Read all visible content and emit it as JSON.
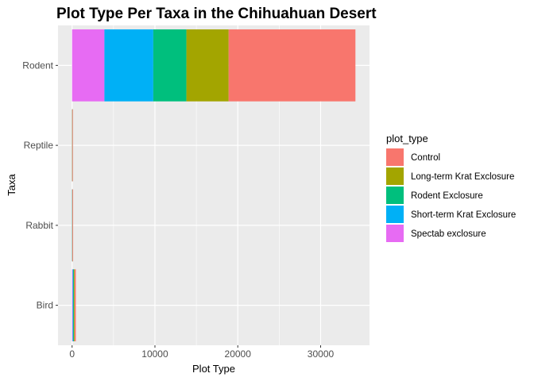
{
  "chart_data": {
    "type": "bar",
    "orientation": "horizontal",
    "stacked": true,
    "title": "Plot Type Per Taxa in the Chihuahuan Desert",
    "xlabel": "Plot Type",
    "ylabel": "Taxa",
    "categories": [
      "Bird",
      "Rabbit",
      "Reptile",
      "Rodent"
    ],
    "xlim": [
      -1700,
      35900
    ],
    "xticks": [
      0,
      10000,
      20000,
      30000
    ],
    "xtick_labels": [
      "0",
      "10000",
      "20000",
      "30000"
    ],
    "grid": true,
    "legend": {
      "title": "plot_type",
      "position": "right"
    },
    "series": [
      {
        "name": "Control",
        "color": "#F8766D",
        "values": [
          150,
          30,
          5,
          15300
        ]
      },
      {
        "name": "Long-term Krat Exclosure",
        "color": "#A3A500",
        "values": [
          80,
          10,
          2,
          5100
        ]
      },
      {
        "name": "Rodent Exclosure",
        "color": "#00BF7D",
        "values": [
          90,
          8,
          3,
          4000
        ]
      },
      {
        "name": "Short-term Krat Exclosure",
        "color": "#00B0F6",
        "values": [
          60,
          5,
          2,
          5900
        ]
      },
      {
        "name": "Spectab exclosure",
        "color": "#E76BF3",
        "values": [
          70,
          4,
          2,
          3900
        ]
      }
    ],
    "panel_background": "#EBEBEB",
    "grid_color": "#FFFFFF"
  }
}
